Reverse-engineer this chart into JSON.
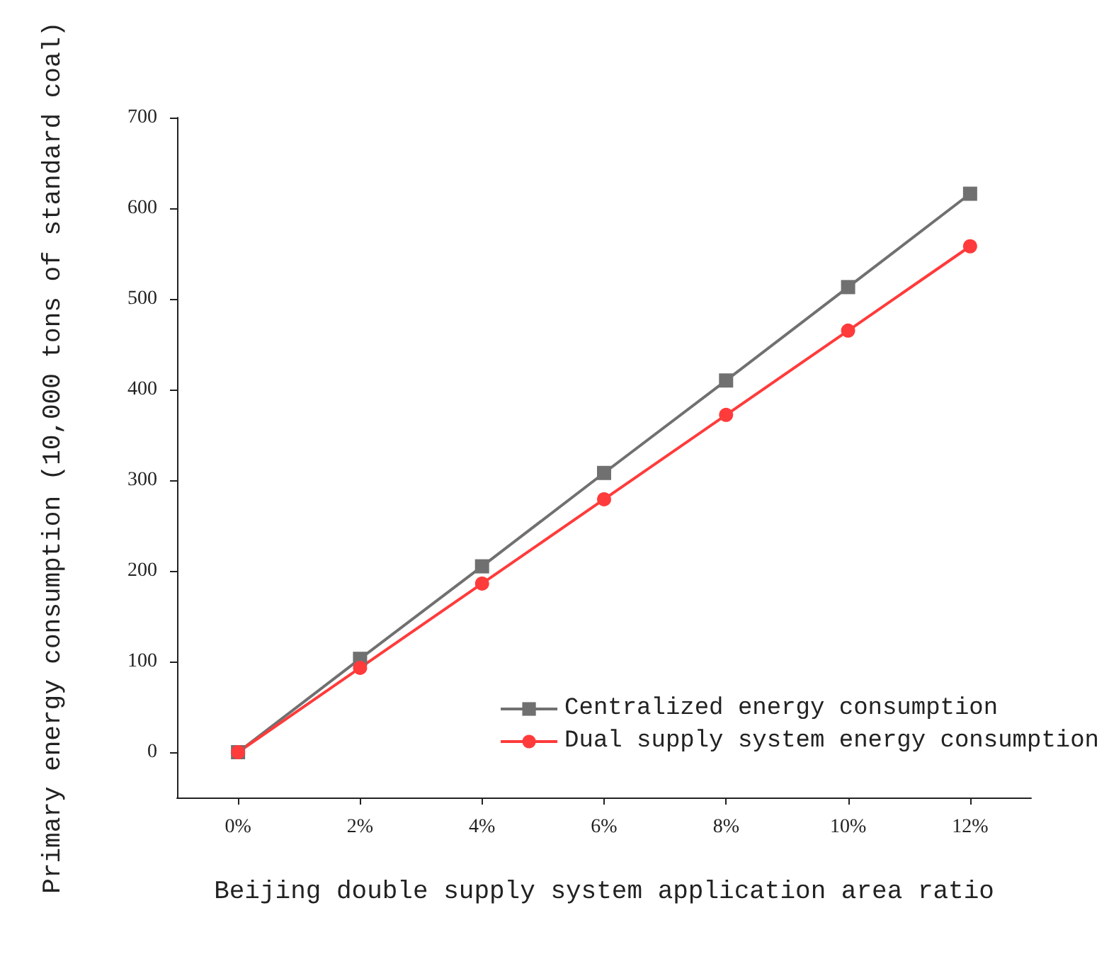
{
  "chart_data": {
    "type": "line",
    "xlabel": "Beijing double supply system application area ratio",
    "ylabel": "Primary energy consumption (10,000 tons of standard coal)",
    "categories": [
      "0%",
      "2%",
      "4%",
      "6%",
      "8%",
      "10%",
      "12%"
    ],
    "series": [
      {
        "name": "Centralized energy consumption",
        "color": "#707070",
        "marker": "square",
        "values": [
          0,
          103,
          205,
          308,
          410,
          513,
          616
        ]
      },
      {
        "name": "Dual supply system energy consumption",
        "color": "#ff3b3b",
        "marker": "circle",
        "values": [
          0,
          93,
          186,
          279,
          372,
          465,
          558
        ]
      }
    ],
    "ylim": [
      -50,
      700
    ],
    "yticks": [
      0,
      100,
      200,
      300,
      400,
      500,
      600,
      700
    ],
    "grid": false,
    "legend": "bottom right",
    "line_style": "solid"
  }
}
